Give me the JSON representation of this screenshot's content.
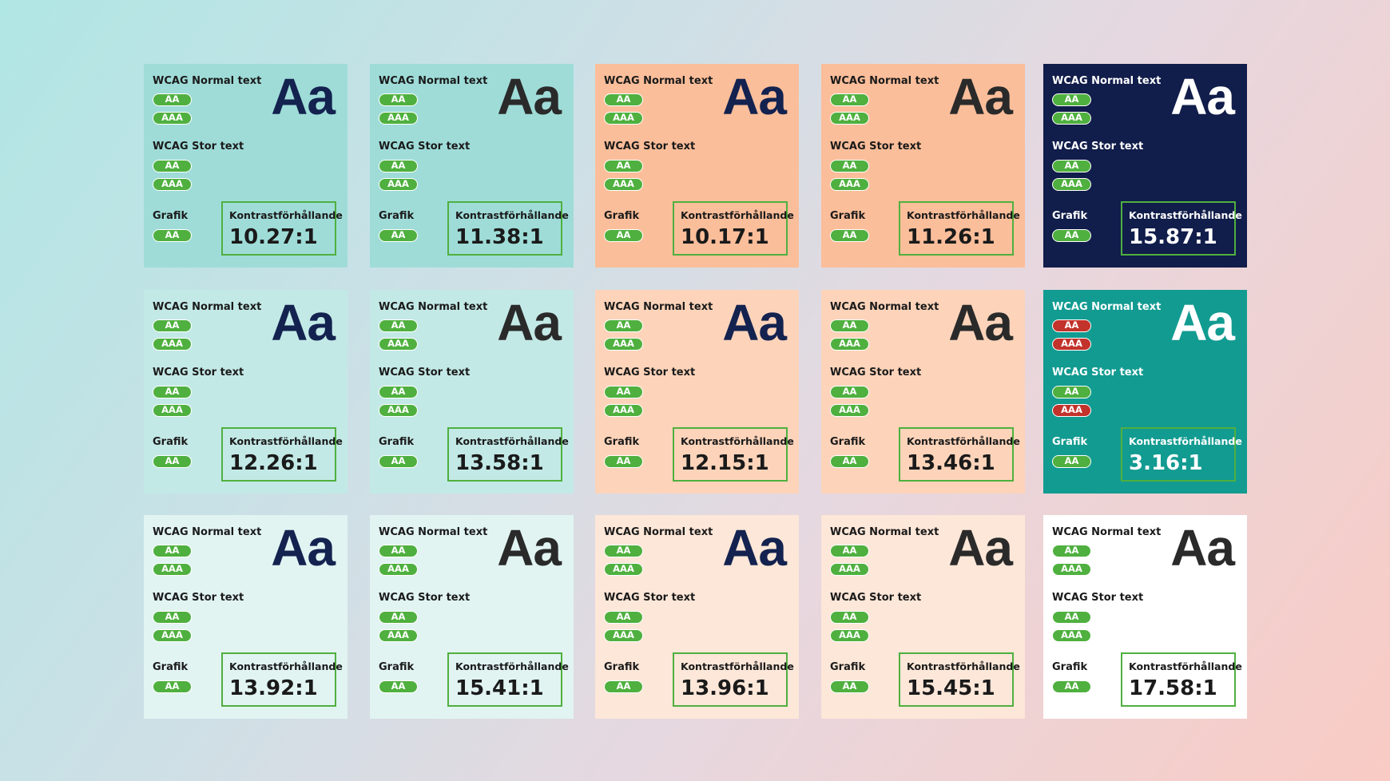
{
  "badge_colors": {
    "pass": "#4fb03f",
    "fail": "#c2332b"
  },
  "cards": [
    {
      "bg": "#9fdcd8",
      "fg": "#1a1a1a",
      "sample_color": "#13224f",
      "sample": "Aa",
      "normal": {
        "label": "WCAG Normal text",
        "badges": [
          {
            "label": "AA",
            "pass": true
          },
          {
            "label": "AAA",
            "pass": true
          }
        ]
      },
      "large": {
        "label": "WCAG Stor text",
        "badges": [
          {
            "label": "AA",
            "pass": true
          },
          {
            "label": "AAA",
            "pass": true
          }
        ]
      },
      "graphic": {
        "label": "Grafik",
        "badges": [
          {
            "label": "AA",
            "pass": true
          }
        ]
      },
      "ratio_label": "Kontrastförhållande",
      "ratio": "10.27:1"
    },
    {
      "bg": "#9fdcd8",
      "fg": "#1a1a1a",
      "sample_color": "#2a2a2a",
      "sample": "Aa",
      "normal": {
        "label": "WCAG Normal text",
        "badges": [
          {
            "label": "AA",
            "pass": true
          },
          {
            "label": "AAA",
            "pass": true
          }
        ]
      },
      "large": {
        "label": "WCAG Stor text",
        "badges": [
          {
            "label": "AA",
            "pass": true
          },
          {
            "label": "AAA",
            "pass": true
          }
        ]
      },
      "graphic": {
        "label": "Grafik",
        "badges": [
          {
            "label": "AA",
            "pass": true
          }
        ]
      },
      "ratio_label": "Kontrastförhållande",
      "ratio": "11.38:1"
    },
    {
      "bg": "#fbbe9a",
      "fg": "#1a1a1a",
      "sample_color": "#13224f",
      "sample": "Aa",
      "normal": {
        "label": "WCAG Normal text",
        "badges": [
          {
            "label": "AA",
            "pass": true
          },
          {
            "label": "AAA",
            "pass": true
          }
        ]
      },
      "large": {
        "label": "WCAG Stor text",
        "badges": [
          {
            "label": "AA",
            "pass": true
          },
          {
            "label": "AAA",
            "pass": true
          }
        ]
      },
      "graphic": {
        "label": "Grafik",
        "badges": [
          {
            "label": "AA",
            "pass": true
          }
        ]
      },
      "ratio_label": "Kontrastförhållande",
      "ratio": "10.17:1"
    },
    {
      "bg": "#fbbe9a",
      "fg": "#1a1a1a",
      "sample_color": "#2a2a2a",
      "sample": "Aa",
      "normal": {
        "label": "WCAG Normal text",
        "badges": [
          {
            "label": "AA",
            "pass": true
          },
          {
            "label": "AAA",
            "pass": true
          }
        ]
      },
      "large": {
        "label": "WCAG Stor text",
        "badges": [
          {
            "label": "AA",
            "pass": true
          },
          {
            "label": "AAA",
            "pass": true
          }
        ]
      },
      "graphic": {
        "label": "Grafik",
        "badges": [
          {
            "label": "AA",
            "pass": true
          }
        ]
      },
      "ratio_label": "Kontrastförhållande",
      "ratio": "11.26:1"
    },
    {
      "bg": "#111d4a",
      "fg": "#ffffff",
      "sample_color": "#ffffff",
      "sample": "Aa",
      "normal": {
        "label": "WCAG Normal text",
        "badges": [
          {
            "label": "AA",
            "pass": true
          },
          {
            "label": "AAA",
            "pass": true
          }
        ]
      },
      "large": {
        "label": "WCAG Stor text",
        "badges": [
          {
            "label": "AA",
            "pass": true
          },
          {
            "label": "AAA",
            "pass": true
          }
        ]
      },
      "graphic": {
        "label": "Grafik",
        "badges": [
          {
            "label": "AA",
            "pass": true
          }
        ]
      },
      "ratio_label": "Kontrastförhållande",
      "ratio": "15.87:1"
    },
    {
      "bg": "#c3e9e6",
      "fg": "#1a1a1a",
      "sample_color": "#13224f",
      "sample": "Aa",
      "normal": {
        "label": "WCAG Normal text",
        "badges": [
          {
            "label": "AA",
            "pass": true
          },
          {
            "label": "AAA",
            "pass": true
          }
        ]
      },
      "large": {
        "label": "WCAG Stor text",
        "badges": [
          {
            "label": "AA",
            "pass": true
          },
          {
            "label": "AAA",
            "pass": true
          }
        ]
      },
      "graphic": {
        "label": "Grafik",
        "badges": [
          {
            "label": "AA",
            "pass": true
          }
        ]
      },
      "ratio_label": "Kontrastförhållande",
      "ratio": "12.26:1"
    },
    {
      "bg": "#c3e9e6",
      "fg": "#1a1a1a",
      "sample_color": "#2a2a2a",
      "sample": "Aa",
      "normal": {
        "label": "WCAG Normal text",
        "badges": [
          {
            "label": "AA",
            "pass": true
          },
          {
            "label": "AAA",
            "pass": true
          }
        ]
      },
      "large": {
        "label": "WCAG Stor text",
        "badges": [
          {
            "label": "AA",
            "pass": true
          },
          {
            "label": "AAA",
            "pass": true
          }
        ]
      },
      "graphic": {
        "label": "Grafik",
        "badges": [
          {
            "label": "AA",
            "pass": true
          }
        ]
      },
      "ratio_label": "Kontrastförhållande",
      "ratio": "13.58:1"
    },
    {
      "bg": "#fdd4ba",
      "fg": "#1a1a1a",
      "sample_color": "#13224f",
      "sample": "Aa",
      "normal": {
        "label": "WCAG Normal text",
        "badges": [
          {
            "label": "AA",
            "pass": true
          },
          {
            "label": "AAA",
            "pass": true
          }
        ]
      },
      "large": {
        "label": "WCAG Stor text",
        "badges": [
          {
            "label": "AA",
            "pass": true
          },
          {
            "label": "AAA",
            "pass": true
          }
        ]
      },
      "graphic": {
        "label": "Grafik",
        "badges": [
          {
            "label": "AA",
            "pass": true
          }
        ]
      },
      "ratio_label": "Kontrastförhållande",
      "ratio": "12.15:1"
    },
    {
      "bg": "#fdd4ba",
      "fg": "#1a1a1a",
      "sample_color": "#2a2a2a",
      "sample": "Aa",
      "normal": {
        "label": "WCAG Normal text",
        "badges": [
          {
            "label": "AA",
            "pass": true
          },
          {
            "label": "AAA",
            "pass": true
          }
        ]
      },
      "large": {
        "label": "WCAG Stor text",
        "badges": [
          {
            "label": "AA",
            "pass": true
          },
          {
            "label": "AAA",
            "pass": true
          }
        ]
      },
      "graphic": {
        "label": "Grafik",
        "badges": [
          {
            "label": "AA",
            "pass": true
          }
        ]
      },
      "ratio_label": "Kontrastförhållande",
      "ratio": "13.46:1"
    },
    {
      "bg": "#129b91",
      "fg": "#ffffff",
      "sample_color": "#ffffff",
      "sample": "Aa",
      "normal": {
        "label": "WCAG Normal text",
        "badges": [
          {
            "label": "AA",
            "pass": false
          },
          {
            "label": "AAA",
            "pass": false
          }
        ]
      },
      "large": {
        "label": "WCAG Stor text",
        "badges": [
          {
            "label": "AA",
            "pass": true
          },
          {
            "label": "AAA",
            "pass": false
          }
        ]
      },
      "graphic": {
        "label": "Grafik",
        "badges": [
          {
            "label": "AA",
            "pass": true
          }
        ]
      },
      "ratio_label": "Kontrastförhållande",
      "ratio": "3.16:1"
    },
    {
      "bg": "#e1f4f2",
      "fg": "#1a1a1a",
      "sample_color": "#13224f",
      "sample": "Aa",
      "normal": {
        "label": "WCAG Normal text",
        "badges": [
          {
            "label": "AA",
            "pass": true
          },
          {
            "label": "AAA",
            "pass": true
          }
        ]
      },
      "large": {
        "label": "WCAG Stor text",
        "badges": [
          {
            "label": "AA",
            "pass": true
          },
          {
            "label": "AAA",
            "pass": true
          }
        ]
      },
      "graphic": {
        "label": "Grafik",
        "badges": [
          {
            "label": "AA",
            "pass": true
          }
        ]
      },
      "ratio_label": "Kontrastförhållande",
      "ratio": "13.92:1"
    },
    {
      "bg": "#e1f4f2",
      "fg": "#1a1a1a",
      "sample_color": "#2a2a2a",
      "sample": "Aa",
      "normal": {
        "label": "WCAG Normal text",
        "badges": [
          {
            "label": "AA",
            "pass": true
          },
          {
            "label": "AAA",
            "pass": true
          }
        ]
      },
      "large": {
        "label": "WCAG Stor text",
        "badges": [
          {
            "label": "AA",
            "pass": true
          },
          {
            "label": "AAA",
            "pass": true
          }
        ]
      },
      "graphic": {
        "label": "Grafik",
        "badges": [
          {
            "label": "AA",
            "pass": true
          }
        ]
      },
      "ratio_label": "Kontrastförhållande",
      "ratio": "15.41:1"
    },
    {
      "bg": "#fde7d8",
      "fg": "#1a1a1a",
      "sample_color": "#13224f",
      "sample": "Aa",
      "normal": {
        "label": "WCAG Normal text",
        "badges": [
          {
            "label": "AA",
            "pass": true
          },
          {
            "label": "AAA",
            "pass": true
          }
        ]
      },
      "large": {
        "label": "WCAG Stor text",
        "badges": [
          {
            "label": "AA",
            "pass": true
          },
          {
            "label": "AAA",
            "pass": true
          }
        ]
      },
      "graphic": {
        "label": "Grafik",
        "badges": [
          {
            "label": "AA",
            "pass": true
          }
        ]
      },
      "ratio_label": "Kontrastförhållande",
      "ratio": "13.96:1"
    },
    {
      "bg": "#fde7d8",
      "fg": "#1a1a1a",
      "sample_color": "#2a2a2a",
      "sample": "Aa",
      "normal": {
        "label": "WCAG Normal text",
        "badges": [
          {
            "label": "AA",
            "pass": true
          },
          {
            "label": "AAA",
            "pass": true
          }
        ]
      },
      "large": {
        "label": "WCAG Stor text",
        "badges": [
          {
            "label": "AA",
            "pass": true
          },
          {
            "label": "AAA",
            "pass": true
          }
        ]
      },
      "graphic": {
        "label": "Grafik",
        "badges": [
          {
            "label": "AA",
            "pass": true
          }
        ]
      },
      "ratio_label": "Kontrastförhållande",
      "ratio": "15.45:1"
    },
    {
      "bg": "#ffffff",
      "fg": "#1a1a1a",
      "sample_color": "#2a2a2a",
      "sample": "Aa",
      "normal": {
        "label": "WCAG Normal text",
        "badges": [
          {
            "label": "AA",
            "pass": true
          },
          {
            "label": "AAA",
            "pass": true
          }
        ]
      },
      "large": {
        "label": "WCAG Stor text",
        "badges": [
          {
            "label": "AA",
            "pass": true
          },
          {
            "label": "AAA",
            "pass": true
          }
        ]
      },
      "graphic": {
        "label": "Grafik",
        "badges": [
          {
            "label": "AA",
            "pass": true
          }
        ]
      },
      "ratio_label": "Kontrastförhållande",
      "ratio": "17.58:1"
    }
  ]
}
